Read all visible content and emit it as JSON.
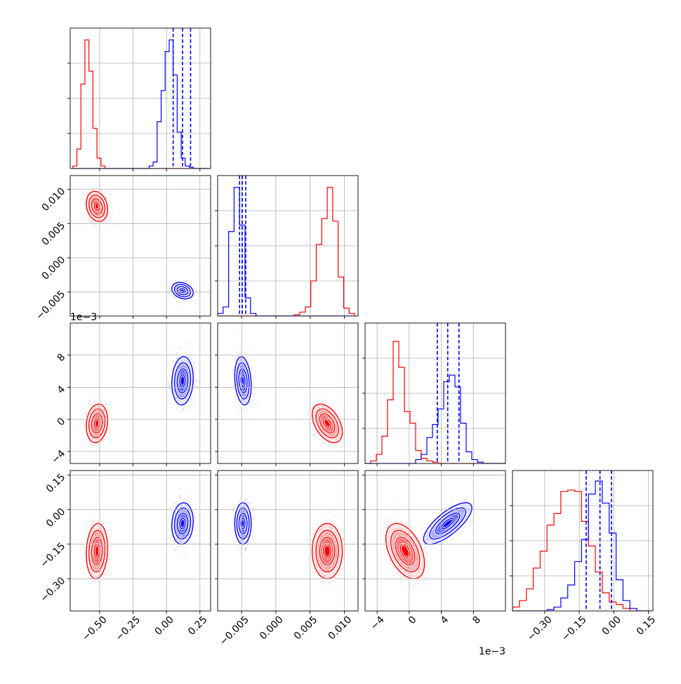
{
  "colors": {
    "series_a": "#ff0000",
    "series_b": "#0000ff",
    "grid": "#b0b0b0",
    "frame": "#000000"
  },
  "chart_data": {
    "type": "corner",
    "grid": true,
    "series": [
      {
        "color": "#ff0000",
        "means": [
          -0.52,
          0.0075,
          -0.0005,
          -0.18
        ],
        "sds": [
          0.04,
          0.0011,
          0.0012,
          0.06
        ],
        "pair_corr": {
          "1-0": -0.2,
          "2-0": 0.15,
          "2-1": -0.45,
          "3-0": 0.1,
          "3-1": 0.0,
          "3-2": -0.45
        }
      },
      {
        "color": "#0000ff",
        "means": [
          0.12,
          -0.0048,
          0.0048,
          -0.06
        ],
        "sds": [
          0.04,
          0.0006,
          0.0015,
          0.045
        ],
        "pair_corr": {
          "1-0": -0.25,
          "2-0": 0.1,
          "2-1": -0.2,
          "3-0": 0.1,
          "3-1": 0.0,
          "3-2": 0.75
        }
      }
    ],
    "quantile_lines": [
      [
        0.05,
        0.12,
        0.18
      ],
      [
        -0.0053,
        -0.0049,
        -0.0044
      ],
      [
        0.0035,
        0.0048,
        0.0062
      ],
      [
        -0.12,
        -0.06,
        -0.01
      ]
    ],
    "histograms": [
      {
        "edges": [
          -0.7,
          -0.67,
          -0.64,
          -0.61,
          -0.58,
          -0.55,
          -0.52,
          -0.49,
          -0.46,
          -0.43,
          -0.4,
          -0.37,
          -0.34,
          -0.31,
          -0.28,
          -0.25,
          -0.22,
          -0.19,
          -0.16,
          -0.13,
          -0.1,
          -0.07,
          -0.04,
          -0.01,
          0.02,
          0.05,
          0.08,
          0.11,
          0.14,
          0.17,
          0.2,
          0.23,
          0.26,
          0.29,
          0.32
        ],
        "red": [
          0.02,
          0.15,
          0.65,
          0.99,
          0.75,
          0.31,
          0.08,
          0.02,
          0,
          0,
          0,
          0,
          0,
          0,
          0,
          0,
          0,
          0,
          0,
          0,
          0,
          0,
          0,
          0,
          0,
          0,
          0,
          0,
          0,
          0,
          0,
          0,
          0,
          0
        ],
        "blue": [
          0,
          0,
          0,
          0,
          0,
          0,
          0,
          0,
          0,
          0,
          0,
          0,
          0,
          0,
          0,
          0,
          0,
          0,
          0,
          0.02,
          0.05,
          0.36,
          0.6,
          0.9,
          0.99,
          0.72,
          0.28,
          0.08,
          0.02,
          0.01,
          0,
          0,
          0,
          0
        ]
      },
      {
        "edges": [
          -0.0085,
          -0.0077,
          -0.0069,
          -0.0061,
          -0.0053,
          -0.0045,
          -0.0037,
          -0.0029,
          -0.0021,
          -0.0013,
          -0.0005,
          0.0003,
          0.0011,
          0.0019,
          0.0027,
          0.0035,
          0.0043,
          0.0051,
          0.0059,
          0.0067,
          0.0075,
          0.0083,
          0.0091,
          0.0099,
          0.0107,
          0.0115
        ],
        "red": [
          0,
          0,
          0,
          0,
          0,
          0,
          0,
          0,
          0,
          0,
          0,
          0,
          0,
          0,
          0.01,
          0.03,
          0.07,
          0.27,
          0.55,
          0.75,
          0.99,
          0.73,
          0.3,
          0.06,
          0.02
        ],
        "blue": [
          0.02,
          0.07,
          0.65,
          0.99,
          0.7,
          0.14,
          0.02,
          0,
          0,
          0,
          0,
          0,
          0,
          0,
          0,
          0,
          0,
          0,
          0,
          0,
          0,
          0,
          0,
          0,
          0
        ]
      },
      {
        "edges": [
          -0.0055,
          -0.0048,
          -0.0041,
          -0.0034,
          -0.0027,
          -0.002,
          -0.0013,
          -0.0006,
          0.0001,
          0.0008,
          0.0015,
          0.0022,
          0.0029,
          0.0036,
          0.0043,
          0.005,
          0.0057,
          0.0064,
          0.0071,
          0.0078,
          0.0085,
          0.0092,
          0.0099,
          0.0106,
          0.0113,
          0.012
        ],
        "red": [
          0,
          0.02,
          0.07,
          0.21,
          0.49,
          0.94,
          0.74,
          0.4,
          0.31,
          0.1,
          0.04,
          0.02,
          0.01,
          0,
          0,
          0,
          0,
          0,
          0,
          0,
          0,
          0,
          0,
          0,
          0
        ],
        "blue": [
          0,
          0,
          0,
          0,
          0,
          0,
          0,
          0,
          0,
          0.03,
          0.07,
          0.2,
          0.3,
          0.42,
          0.63,
          0.68,
          0.59,
          0.31,
          0.09,
          0.03,
          0.01,
          0,
          0,
          0,
          0
        ]
      },
      {
        "edges": [
          -0.47,
          -0.44,
          -0.41,
          -0.38,
          -0.35,
          -0.32,
          -0.29,
          -0.26,
          -0.23,
          -0.2,
          -0.17,
          -0.14,
          -0.11,
          -0.08,
          -0.05,
          -0.02,
          0.01,
          0.04,
          0.07,
          0.1,
          0.13,
          0.16
        ],
        "red": [
          0,
          0.03,
          0.08,
          0.17,
          0.33,
          0.46,
          0.66,
          0.75,
          0.92,
          0.93,
          0.92,
          0.69,
          0.5,
          0.3,
          0.14,
          0.07,
          0.05,
          0.02,
          0,
          0,
          0
        ],
        "blue": [
          0,
          0,
          0,
          0,
          0,
          0,
          0.01,
          0.03,
          0.1,
          0.2,
          0.38,
          0.55,
          0.9,
          1.0,
          0.83,
          0.6,
          0.24,
          0.08,
          0.02,
          0,
          0
        ]
      }
    ],
    "params": [
      {
        "range": [
          -0.72,
          0.33
        ],
        "ticks": [
          -0.5,
          -0.25,
          0.0,
          0.25
        ],
        "tick_labels": [
          "−0.50",
          "−0.25",
          "0.00",
          "0.25"
        ],
        "offset_text": ""
      },
      {
        "range": [
          -0.0085,
          0.012
        ],
        "ticks": [
          -0.005,
          0.0,
          0.005,
          0.01
        ],
        "tick_labels": [
          "−0.005",
          "0.000",
          "0.005",
          "0.010"
        ],
        "offset_text": ""
      },
      {
        "range": [
          -0.0055,
          0.012
        ],
        "ticks": [
          -0.004,
          0.0,
          0.004,
          0.008
        ],
        "tick_labels": [
          "−4",
          "0",
          "4",
          "8"
        ],
        "offset_text": "1e−3"
      },
      {
        "range": [
          -0.44,
          0.17
        ],
        "ticks": [
          -0.3,
          -0.15,
          0.0,
          0.15
        ],
        "tick_labels": [
          "−0.30",
          "−0.15",
          "0.00",
          "0.15"
        ],
        "offset_text": ""
      }
    ]
  }
}
